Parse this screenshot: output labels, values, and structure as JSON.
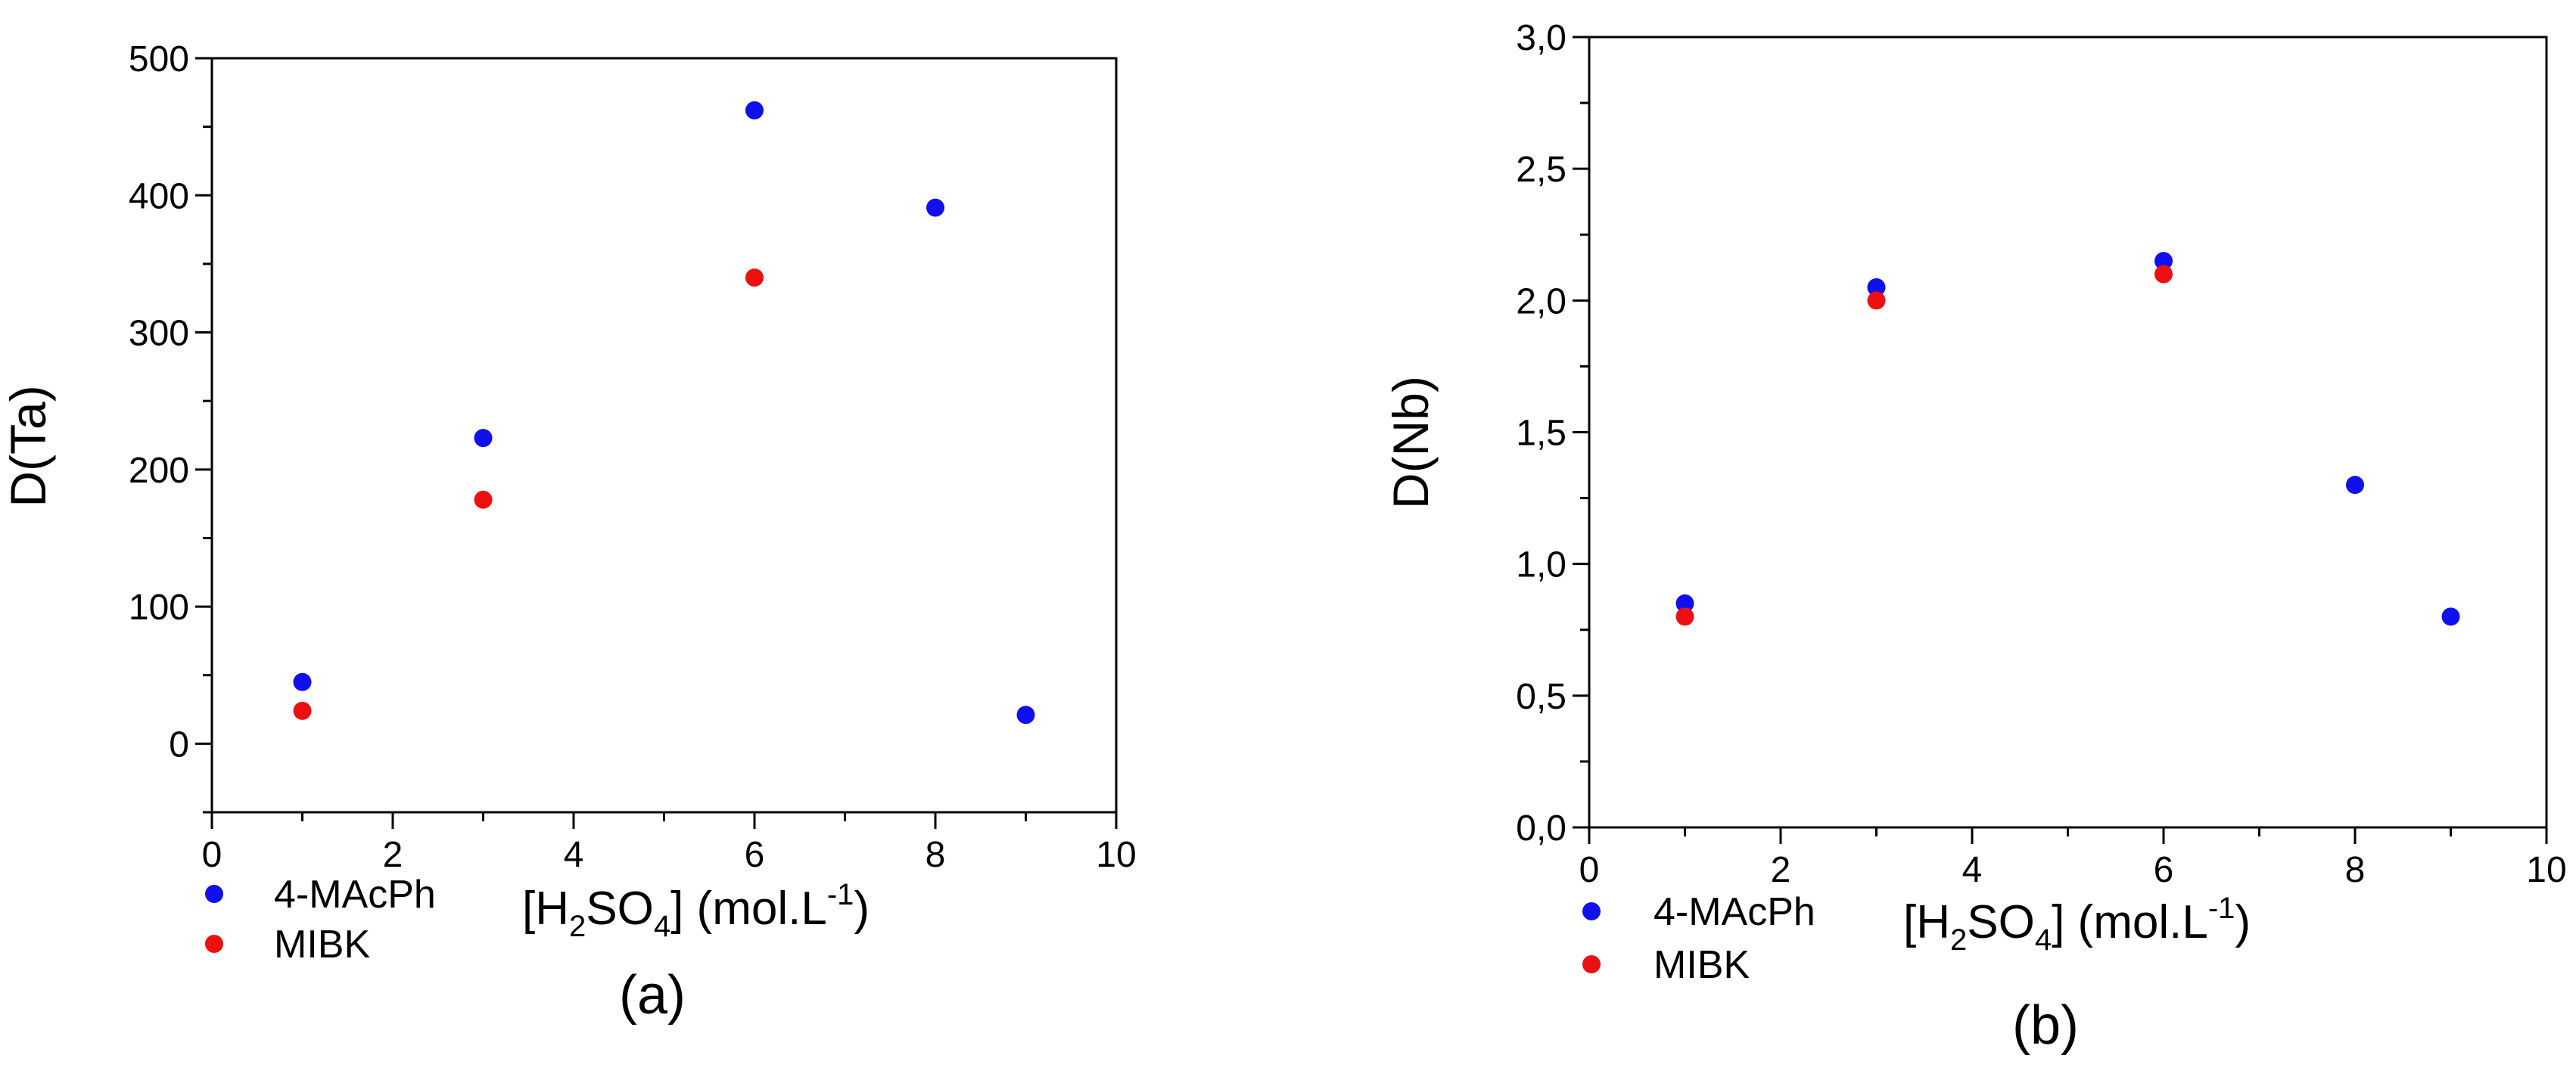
{
  "chart_data": [
    {
      "type": "scatter",
      "panel_label": "(a)",
      "xlabel": {
        "pre": "[H",
        "s1": "2",
        "mid": "SO",
        "s2": "4",
        "post": "] (mol.L",
        "sup": "-1",
        "end": ")"
      },
      "ylabel": "D(Ta)",
      "xlim": [
        0,
        10
      ],
      "ylim": [
        -50,
        500
      ],
      "x_ticks": [
        "0",
        "2",
        "4",
        "6",
        "8",
        "10"
      ],
      "x_tick_values": [
        0,
        2,
        4,
        6,
        8,
        10
      ],
      "x_minor_ticks": [
        1,
        3,
        5,
        7,
        9
      ],
      "y_ticks": [
        "0",
        "100",
        "200",
        "300",
        "400",
        "500"
      ],
      "y_tick_values": [
        0,
        100,
        200,
        300,
        400,
        500
      ],
      "y_minor_ticks": [
        -50,
        50,
        150,
        250,
        350,
        450
      ],
      "grid": false,
      "legend_position": "bottom-left, below plot",
      "series": [
        {
          "name": "4-MAcPh",
          "color": "#1010ee",
          "x": [
            1,
            3,
            6,
            8,
            9
          ],
          "y": [
            45,
            223,
            462,
            391,
            21
          ]
        },
        {
          "name": "MIBK",
          "color": "#ee1010",
          "x": [
            1,
            3,
            6
          ],
          "y": [
            24,
            178,
            340
          ]
        }
      ]
    },
    {
      "type": "scatter",
      "panel_label": "(b)",
      "xlabel": {
        "pre": "[H",
        "s1": "2",
        "mid": "SO",
        "s2": "4",
        "post": "] (mol.L",
        "sup": "-1",
        "end": ")"
      },
      "ylabel": "D(Nb)",
      "xlim": [
        0,
        10
      ],
      "ylim": [
        0,
        3
      ],
      "x_ticks": [
        "0",
        "2",
        "4",
        "6",
        "8",
        "10"
      ],
      "x_tick_values": [
        0,
        2,
        4,
        6,
        8,
        10
      ],
      "x_minor_ticks": [
        1,
        3,
        5,
        7,
        9
      ],
      "y_ticks": [
        "0,0",
        "0,5",
        "1,0",
        "1,5",
        "2,0",
        "2,5",
        "3,0"
      ],
      "y_tick_values": [
        0,
        0.5,
        1,
        1.5,
        2,
        2.5,
        3
      ],
      "y_minor_ticks": [
        0.25,
        0.75,
        1.25,
        1.75,
        2.25,
        2.75
      ],
      "grid": false,
      "legend_position": "bottom-left, below plot",
      "series": [
        {
          "name": "4-MAcPh",
          "color": "#1010ee",
          "x": [
            1,
            3,
            6,
            8,
            9
          ],
          "y": [
            0.85,
            2.05,
            2.15,
            1.3,
            0.8
          ]
        },
        {
          "name": "MIBK",
          "color": "#ee1010",
          "x": [
            1,
            3,
            6
          ],
          "y": [
            0.8,
            2.0,
            2.1
          ]
        }
      ]
    }
  ]
}
